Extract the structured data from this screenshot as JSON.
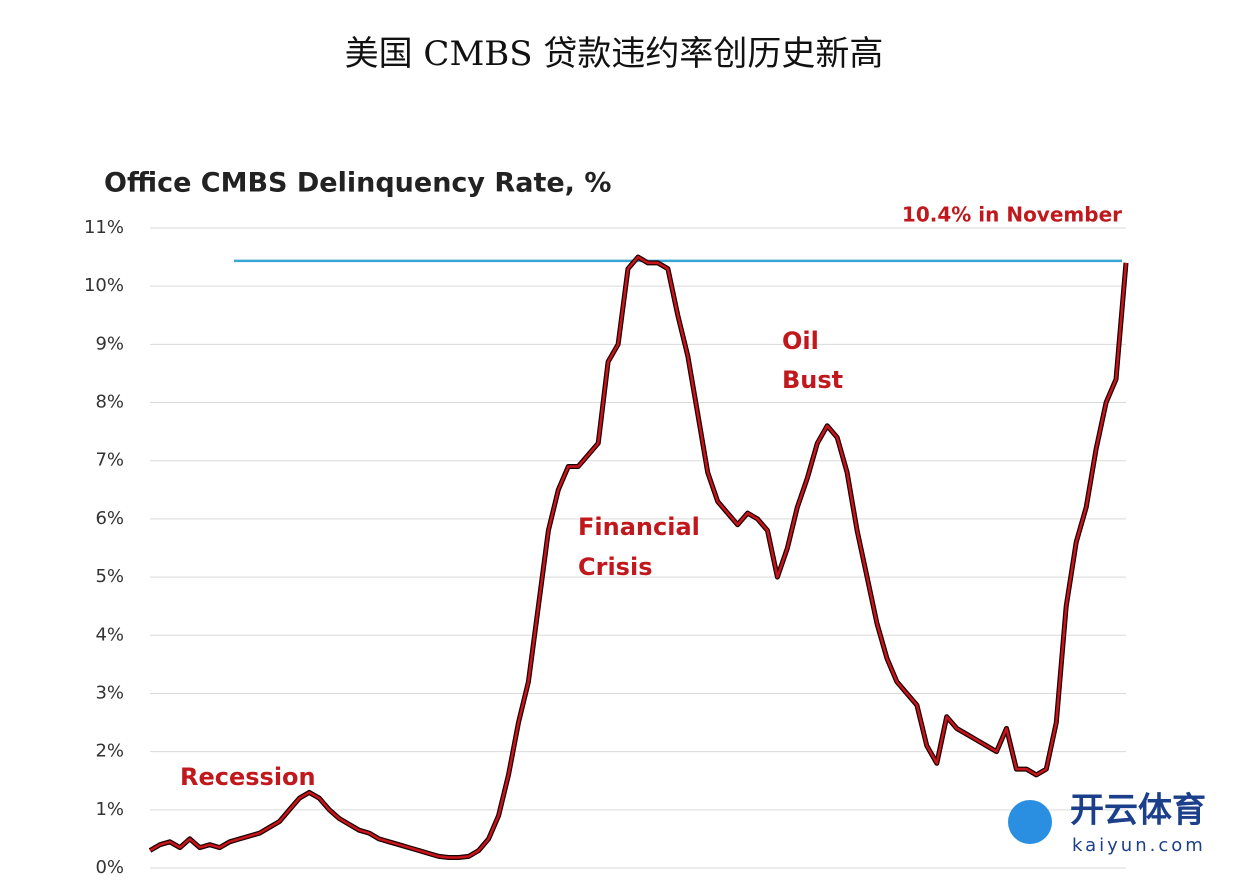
{
  "chart_data": {
    "type": "line",
    "title": "美国 CMBS 贷款违约率创历史新高",
    "subtitle": "Office CMBS Delinquency Rate, %",
    "ylim": [
      0,
      11
    ],
    "yticks": [
      {
        "value": 0,
        "label": "0%"
      },
      {
        "value": 1,
        "label": "1%"
      },
      {
        "value": 2,
        "label": "2%"
      },
      {
        "value": 3,
        "label": "3%"
      },
      {
        "value": 4,
        "label": "4%"
      },
      {
        "value": 5,
        "label": "5%"
      },
      {
        "value": 6,
        "label": "6%"
      },
      {
        "value": 7,
        "label": "7%"
      },
      {
        "value": 8,
        "label": "8%"
      },
      {
        "value": 9,
        "label": "9%"
      },
      {
        "value": 10,
        "label": "10%"
      },
      {
        "value": 11,
        "label": "11%"
      }
    ],
    "grid": true,
    "color": "#c8141a",
    "values": [
      0.3,
      0.4,
      0.45,
      0.35,
      0.5,
      0.35,
      0.4,
      0.35,
      0.45,
      0.5,
      0.55,
      0.6,
      0.7,
      0.8,
      1.0,
      1.2,
      1.3,
      1.2,
      1.0,
      0.85,
      0.75,
      0.65,
      0.6,
      0.5,
      0.45,
      0.4,
      0.35,
      0.3,
      0.25,
      0.2,
      0.18,
      0.18,
      0.2,
      0.3,
      0.5,
      0.9,
      1.6,
      2.5,
      3.2,
      4.5,
      5.8,
      6.5,
      6.9,
      6.9,
      7.1,
      7.3,
      8.7,
      9.0,
      10.3,
      10.5,
      10.4,
      10.4,
      10.3,
      9.5,
      8.8,
      7.8,
      6.8,
      6.3,
      6.1,
      5.9,
      6.1,
      6.0,
      5.8,
      5.0,
      5.5,
      6.2,
      6.7,
      7.3,
      7.6,
      7.4,
      6.8,
      5.8,
      5.0,
      4.2,
      3.6,
      3.2,
      3.0,
      2.8,
      2.1,
      1.8,
      2.6,
      2.4,
      2.3,
      2.2,
      2.1,
      2.0,
      2.4,
      1.7,
      1.7,
      1.6,
      1.7,
      2.5,
      4.5,
      5.6,
      6.2,
      7.2,
      8.0,
      8.4,
      10.4
    ],
    "reference_line": {
      "value": 10.4,
      "label": "10.4% in November",
      "color": "#3aa6d6"
    },
    "annotations": [
      "Recession",
      "Financial",
      "Crisis",
      "Oil",
      "Bust"
    ],
    "watermark": [
      "开云体育",
      "kaiyun.com"
    ]
  }
}
